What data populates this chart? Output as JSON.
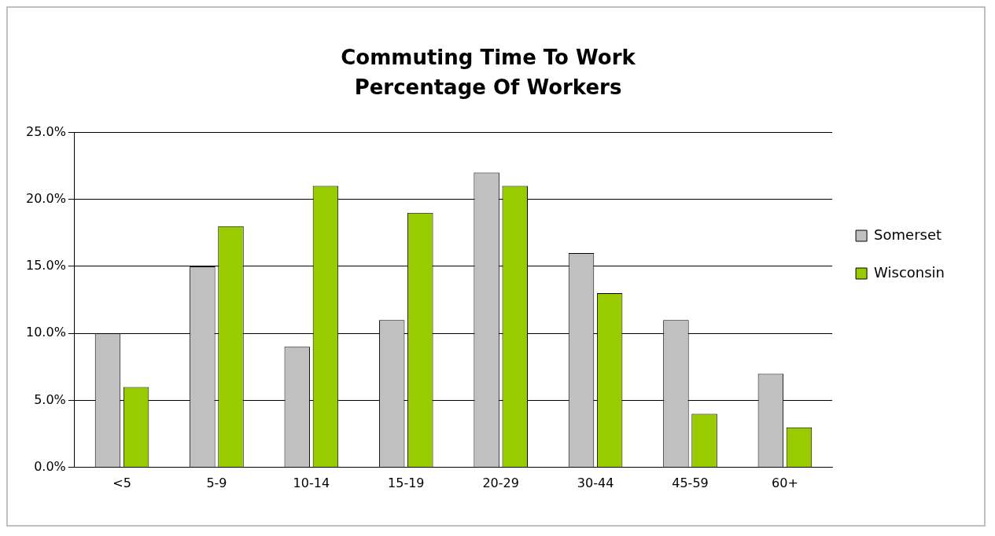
{
  "chart_data": {
    "type": "bar",
    "title": "Commuting Time To Work",
    "subtitle": "Percentage Of Workers",
    "categories": [
      "<5",
      "5-9",
      "10-14",
      "15-19",
      "20-29",
      "30-44",
      "45-59",
      "60+"
    ],
    "series": [
      {
        "name": "Somerset",
        "color": "#c0c0c0",
        "values": [
          10,
          15,
          9,
          11,
          22,
          16,
          11,
          7
        ]
      },
      {
        "name": "Wisconsin",
        "color": "#99cc00",
        "values": [
          6,
          18,
          21,
          19,
          21,
          13,
          4,
          3
        ]
      }
    ],
    "ylim": [
      0,
      25
    ],
    "yticks": [
      {
        "value": 0,
        "label": "0.0%"
      },
      {
        "value": 5,
        "label": "5.0%"
      },
      {
        "value": 10,
        "label": "10.0%"
      },
      {
        "value": 15,
        "label": "15.0%"
      },
      {
        "value": 20,
        "label": "20.0%"
      },
      {
        "value": 25,
        "label": "25.0%"
      }
    ],
    "grid": "y",
    "legend": "right"
  }
}
